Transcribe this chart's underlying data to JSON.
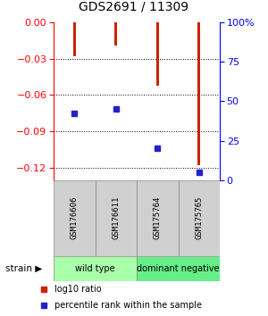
{
  "title": "GDS2691 / 11309",
  "samples": [
    "GSM176606",
    "GSM176611",
    "GSM175764",
    "GSM175765"
  ],
  "log10_ratios": [
    -0.028,
    -0.019,
    -0.052,
    -0.118
  ],
  "percentile_ranks": [
    42,
    45,
    20,
    5
  ],
  "ylim_left": [
    -0.13,
    0.0
  ],
  "ylim_right": [
    0,
    100
  ],
  "yticks_left": [
    -0.12,
    -0.09,
    -0.06,
    -0.03,
    0
  ],
  "yticks_right": [
    0,
    25,
    50,
    75,
    100
  ],
  "bar_color": "#cc2200",
  "square_color": "#2222cc",
  "groups": [
    {
      "label": "wild type",
      "samples": [
        0,
        1
      ],
      "color": "#aaffaa"
    },
    {
      "label": "dominant negative",
      "samples": [
        2,
        3
      ],
      "color": "#66ee88"
    }
  ],
  "group_label": "strain",
  "legend_red": "log10 ratio",
  "legend_blue": "percentile rank within the sample",
  "background_color": "#ffffff",
  "bar_width": 0.07
}
